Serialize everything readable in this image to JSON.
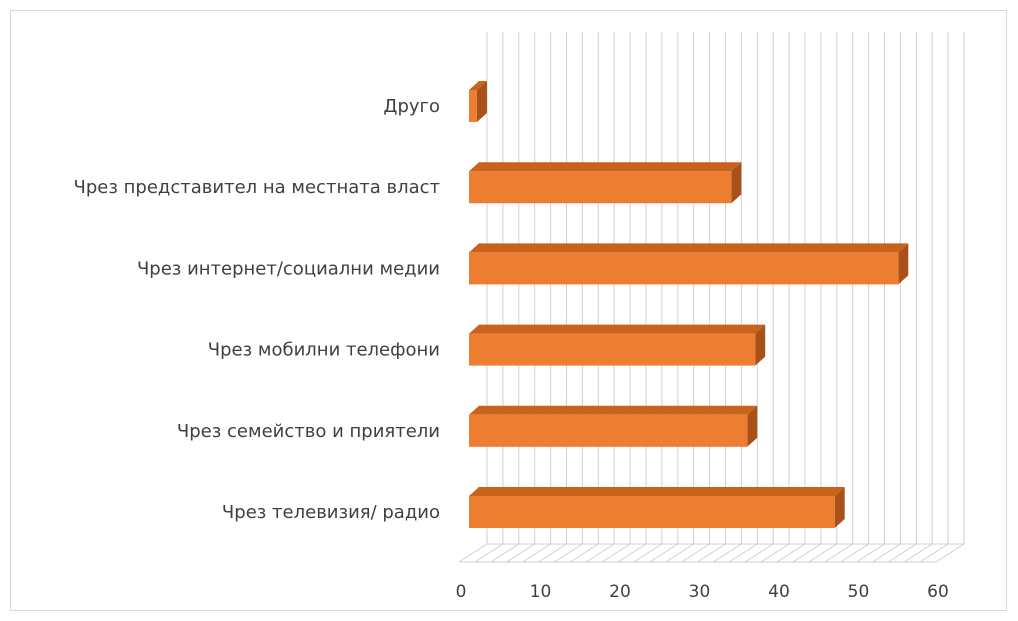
{
  "chart_data": {
    "type": "bar",
    "orientation": "horizontal",
    "style": "3d-clustered-bar",
    "categories": [
      "Чрез телевизия/ радио",
      "Чрез семейство и приятели",
      "Чрез мобилни телефони",
      "Чрез интернет/социални медии",
      "Чрез представител на местната власт",
      "Друго"
    ],
    "values": [
      46,
      35,
      36,
      54,
      33,
      1
    ],
    "xlim": [
      0,
      60
    ],
    "x_ticks": [
      "0",
      "10",
      "20",
      "30",
      "40",
      "50",
      "60"
    ],
    "grid": true,
    "legend": "none",
    "colors": {
      "bar_front": "#ED7D31",
      "bar_top": "#C9621B",
      "bar_side": "#A9511A",
      "grid": "#cfcfcf",
      "text": "#404040"
    }
  }
}
